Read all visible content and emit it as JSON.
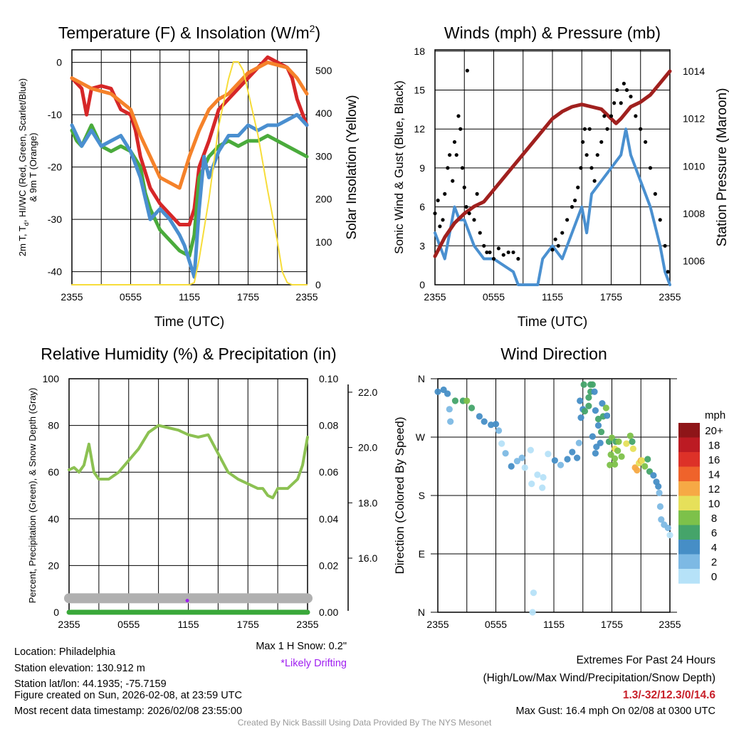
{
  "colors": {
    "red": "#d62728",
    "orange": "#f5822a",
    "green": "#4aab3c",
    "blue": "#4a8fd0",
    "yellow": "#f7dd3a",
    "maroon": "#a0201e",
    "wind": "#4a90d0",
    "gust": "#000000",
    "rh": "#8cc152",
    "snow": "#b0b0b0",
    "precip": "#3aa83a",
    "drift": "#a020f0",
    "extremes": "#c8202a"
  },
  "chart_data": [
    {
      "type": "line",
      "title_main": "Temperature (F) & Insolation (W/m",
      "title_sup": "2",
      "title_end": ")",
      "xlabel": "Time (UTC)",
      "ylabel_line1_a": "2m T, T",
      "ylabel_line1_sub": "d",
      "ylabel_line1_b": ", HI/WC (Red, Green, Scarlet/Blue)",
      "ylabel_line2": "& 9m T (Orange)",
      "y2label": "Solar Insolation (Yellow)",
      "xticks": [
        "2355",
        "0555",
        "1155",
        "1755",
        "2355"
      ],
      "ylim": [
        -42.5,
        2.4
      ],
      "yticks": [
        0,
        -10,
        -20,
        -30,
        -40
      ],
      "y2lim": [
        0,
        548
      ],
      "y2ticks": [
        0,
        100,
        200,
        300,
        400,
        500
      ],
      "series": [
        {
          "name": "2m T",
          "color": "red",
          "axis": "left",
          "x": [
            0,
            0.5,
            1,
            1.5,
            2,
            3,
            4,
            5,
            6,
            6.5,
            7,
            8,
            9,
            10,
            11,
            12,
            12.5,
            13,
            14,
            15,
            16,
            17,
            18,
            19,
            20,
            21,
            22,
            22.5,
            23,
            24
          ],
          "y": [
            -3,
            -4,
            -5,
            -10,
            -5,
            -4.5,
            -5,
            -9,
            -10,
            -13,
            -18,
            -24,
            -27,
            -29,
            -31,
            -31,
            -28,
            -20,
            -15,
            -9,
            -7,
            -5,
            -3,
            -1,
            1,
            0,
            -1,
            -3,
            -7,
            -12
          ]
        },
        {
          "name": "9m T",
          "color": "orange",
          "axis": "left",
          "x": [
            0,
            2,
            4,
            6,
            7,
            8,
            9,
            10,
            11,
            11.5,
            12,
            13,
            14,
            15,
            16,
            17,
            18,
            19,
            20,
            21,
            22,
            23,
            24
          ],
          "y": [
            -3,
            -5,
            -6,
            -9,
            -14,
            -18,
            -22,
            -23,
            -24,
            -21,
            -18,
            -13,
            -9,
            -7,
            -6,
            -4,
            -2,
            -1,
            0,
            -0.5,
            -1,
            -3,
            -6
          ]
        },
        {
          "name": "Td",
          "color": "green",
          "axis": "left",
          "x": [
            0,
            0.5,
            1,
            2,
            3,
            4,
            5,
            6,
            7,
            7.5,
            8,
            9,
            10,
            11,
            12,
            12.5,
            13,
            13.5,
            14,
            15,
            16,
            17,
            18,
            19,
            20,
            21,
            22,
            23,
            24
          ],
          "y": [
            -13,
            -15,
            -16,
            -12,
            -16,
            -17,
            -16,
            -17,
            -20,
            -25,
            -28,
            -32,
            -34,
            -36,
            -37,
            -33,
            -22,
            -20,
            -18,
            -16,
            -15,
            -16,
            -15,
            -15,
            -14,
            -15,
            -16,
            -17,
            -18
          ]
        },
        {
          "name": "HI/WC",
          "color": "blue",
          "axis": "left",
          "x": [
            0,
            1,
            2,
            3,
            4,
            5,
            6,
            7,
            8,
            9,
            10,
            11,
            11.5,
            12,
            12.5,
            13,
            13.5,
            14,
            15,
            16,
            17,
            18,
            19,
            20,
            21,
            22,
            23,
            24
          ],
          "y": [
            -12,
            -16,
            -13,
            -16,
            -15,
            -14,
            -17,
            -22,
            -30,
            -28,
            -30,
            -33,
            -35,
            -38,
            -41,
            -28,
            -18,
            -22,
            -17,
            -14,
            -14,
            -12,
            -13,
            -12,
            -12,
            -11,
            -10,
            -12
          ]
        },
        {
          "name": "Solar",
          "color": "yellow",
          "axis": "right",
          "x": [
            0,
            12,
            12.5,
            13,
            14,
            15,
            16,
            16.5,
            17,
            17.5,
            18,
            19,
            20,
            21,
            21.5,
            22,
            22.5,
            24
          ],
          "y": [
            0,
            0,
            5,
            60,
            200,
            370,
            480,
            520,
            520,
            500,
            450,
            350,
            220,
            100,
            30,
            5,
            0,
            0
          ]
        }
      ]
    },
    {
      "type": "line",
      "title": "Winds (mph) & Pressure (mb)",
      "xlabel": "Time (UTC)",
      "ylabel": "Sonic Wind & Gust (Blue, Black)",
      "y2label": "Station Pressure (Maroon)",
      "xticks": [
        "2355",
        "0555",
        "1155",
        "1755",
        "2355"
      ],
      "ylim": [
        0,
        18.1
      ],
      "yticks": [
        0,
        3,
        6,
        9,
        12,
        15,
        18
      ],
      "y2lim": [
        1005,
        1014.9
      ],
      "y2ticks": [
        1006,
        1008,
        1010,
        1012,
        1014
      ],
      "wind": {
        "x": [
          0,
          0.5,
          1,
          1.5,
          2,
          2.5,
          3,
          4,
          5,
          6,
          7,
          8,
          8.5,
          10,
          10.5,
          11,
          12,
          13,
          14,
          15,
          15.5,
          16,
          17,
          18,
          19,
          19.5,
          20,
          21,
          22,
          23,
          23.5,
          24
        ],
        "y": [
          4,
          3,
          2,
          4,
          6,
          5,
          5,
          3,
          2,
          2,
          1.5,
          1,
          0,
          0,
          0,
          2,
          3,
          2,
          4,
          6,
          4,
          7,
          8,
          9,
          10,
          12,
          10,
          8,
          6,
          3,
          1,
          0
        ]
      },
      "pressure": {
        "x": [
          0,
          1,
          2,
          3,
          4,
          5,
          6,
          7,
          8,
          9,
          10,
          11,
          12,
          13,
          14,
          15,
          16,
          17,
          18,
          18.5,
          19,
          20,
          21,
          22,
          23,
          24
        ],
        "y": [
          1006.2,
          1007,
          1007.6,
          1008,
          1008.3,
          1008.5,
          1009,
          1009.5,
          1010,
          1010.5,
          1011,
          1011.5,
          1012,
          1012.3,
          1012.5,
          1012.6,
          1012.5,
          1012.4,
          1012,
          1011.8,
          1012,
          1012.5,
          1012.7,
          1013,
          1013.5,
          1014
        ]
      },
      "gust": {
        "x": [
          0,
          0.3,
          0.5,
          0.8,
          1,
          1.3,
          1.5,
          1.8,
          2,
          2.2,
          2.4,
          2.6,
          2.8,
          3,
          3.2,
          3.3,
          3.5,
          4,
          4.3,
          4.6,
          5,
          5.3,
          5.6,
          6,
          6.5,
          7,
          7.5,
          8,
          8.5,
          12,
          12.3,
          12.6,
          13,
          13.5,
          14,
          14.3,
          14.6,
          14.9,
          15.1,
          15.3,
          15.5,
          15.8,
          16,
          16.3,
          16.6,
          17,
          17.3,
          17.6,
          18,
          18.3,
          18.6,
          19,
          19.3,
          19.6,
          20,
          20.5,
          21,
          21.5,
          22,
          22.5,
          23,
          23.5,
          23.8
        ],
        "y": [
          5.5,
          6.5,
          4.5,
          5,
          7,
          9,
          10,
          8,
          11,
          10,
          13,
          12,
          9,
          7.5,
          6,
          16.5,
          5.5,
          5,
          7,
          4,
          3,
          2.5,
          2.5,
          2,
          2.8,
          2.3,
          2.5,
          2.5,
          2,
          2.7,
          3.5,
          3,
          4,
          5,
          6,
          6.5,
          7.5,
          9,
          11,
          12,
          10,
          12,
          9,
          8,
          10,
          11,
          13,
          12,
          13,
          14,
          15,
          14,
          15.5,
          15,
          14.5,
          13,
          12,
          11,
          9,
          7,
          5,
          3,
          1
        ]
      }
    },
    {
      "type": "line",
      "title": "Relative Humidity (%) & Precipitation (in)",
      "ylabel": "Percent, Precipitation (Green), & Snow Depth (Gray)",
      "xticks": [
        "2355",
        "0555",
        "1155",
        "1755",
        "2355"
      ],
      "ylim": [
        0,
        100
      ],
      "yticks": [
        0,
        20,
        40,
        60,
        80,
        100
      ],
      "y2ticks": [
        "0.00",
        "0.02",
        "0.04",
        "0.06",
        "0.08",
        "0.10"
      ],
      "y3ticks": [
        "16.0",
        "18.0",
        "20.0",
        "22.0"
      ],
      "rh": {
        "x": [
          0,
          0.5,
          1,
          1.5,
          2,
          2.5,
          3,
          4,
          5,
          6,
          7,
          8,
          9,
          10,
          11,
          12,
          13,
          14,
          15,
          16,
          17,
          18,
          19,
          19.5,
          20,
          20.5,
          21,
          22,
          23,
          23.5,
          24
        ],
        "y": [
          61,
          62,
          60,
          63,
          72,
          60,
          57,
          57,
          60,
          65,
          70,
          77,
          80,
          79,
          78,
          76,
          75,
          76,
          68,
          60,
          57,
          55,
          53,
          53,
          50,
          49,
          53,
          53,
          57,
          63,
          75
        ]
      },
      "snow_level": 6,
      "precip": 0,
      "drift_point": {
        "x": 11.9,
        "y": 5
      },
      "note_snow": "Max 1 H Snow: 0.2\"",
      "note_drift": "*Likely Drifting"
    },
    {
      "type": "scatter",
      "title": "Wind Direction",
      "ylabel": "Direction (Colored By Speed)",
      "xticks": [
        "2355",
        "0555",
        "1155",
        "1755",
        "2355"
      ],
      "yticks": [
        "N",
        "W",
        "S",
        "E",
        "N"
      ],
      "colorbar_title": "mph",
      "colorbar_labels": [
        "20+",
        "18",
        "16",
        "14",
        "12",
        "10",
        "8",
        "6",
        "4",
        "2",
        "0"
      ],
      "colorbar_colors": [
        "#8e1518",
        "#bc1b23",
        "#dd3128",
        "#ef632b",
        "#f6a945",
        "#e6e05a",
        "#7dc14a",
        "#45a46a",
        "#468ec6",
        "#7db9e4",
        "#b6e2f8"
      ],
      "points": [
        [
          0,
          340,
          4
        ],
        [
          0.6,
          343,
          4
        ],
        [
          1,
          337,
          4
        ],
        [
          1.2,
          313,
          2
        ],
        [
          1.3,
          294,
          2
        ],
        [
          1.8,
          326,
          6
        ],
        [
          2.6,
          326,
          6
        ],
        [
          3,
          326,
          8
        ],
        [
          3.5,
          315,
          6
        ],
        [
          4.3,
          302,
          4
        ],
        [
          4.8,
          294,
          4
        ],
        [
          5.5,
          289,
          4
        ],
        [
          6,
          290,
          4
        ],
        [
          6.3,
          280,
          2
        ],
        [
          6.6,
          260,
          0
        ],
        [
          7,
          245,
          2
        ],
        [
          7.6,
          225,
          4
        ],
        [
          8.2,
          233,
          2
        ],
        [
          8.7,
          238,
          2
        ],
        [
          9,
          223,
          0
        ],
        [
          9.6,
          250,
          0
        ],
        [
          9.7,
          198,
          0
        ],
        [
          10.3,
          212,
          0
        ],
        [
          10.9,
          208,
          0
        ],
        [
          10.8,
          192,
          0
        ],
        [
          11.4,
          244,
          0
        ],
        [
          12.1,
          234,
          4
        ],
        [
          12.7,
          227,
          2
        ],
        [
          13.4,
          236,
          4
        ],
        [
          13.9,
          247,
          4
        ],
        [
          14.4,
          238,
          4
        ],
        [
          14.6,
          261,
          2
        ],
        [
          9.9,
          30,
          0
        ],
        [
          9.8,
          0,
          0
        ],
        [
          14.7,
          326,
          4
        ],
        [
          15,
          313,
          4
        ],
        [
          14.8,
          300,
          4
        ],
        [
          15.1,
          351,
          6
        ],
        [
          15.8,
          351,
          6
        ],
        [
          16,
          351,
          6
        ],
        [
          15.8,
          340,
          6
        ],
        [
          15.6,
          331,
          6
        ],
        [
          16.2,
          340,
          4
        ],
        [
          15.6,
          318,
          6
        ],
        [
          15.2,
          310,
          6
        ],
        [
          16.3,
          311,
          4
        ],
        [
          17,
          322,
          4
        ],
        [
          17.4,
          315,
          8
        ],
        [
          16.6,
          298,
          6
        ],
        [
          17.1,
          302,
          6
        ],
        [
          17.5,
          303,
          4
        ],
        [
          16.6,
          288,
          4
        ],
        [
          16.9,
          278,
          6
        ],
        [
          16,
          271,
          4
        ],
        [
          16.4,
          255,
          4
        ],
        [
          16.3,
          245,
          4
        ],
        [
          16.8,
          261,
          4
        ],
        [
          17.7,
          263,
          6
        ],
        [
          18,
          269,
          8
        ],
        [
          18.4,
          263,
          6
        ],
        [
          18.7,
          263,
          8
        ],
        [
          18.3,
          252,
          10
        ],
        [
          18.6,
          249,
          8
        ],
        [
          17.9,
          243,
          8
        ],
        [
          18.3,
          237,
          8
        ],
        [
          19,
          240,
          8
        ],
        [
          17.8,
          227,
          8
        ],
        [
          18.3,
          228,
          8
        ],
        [
          19.5,
          260,
          10
        ],
        [
          19.9,
          272,
          8
        ],
        [
          20.1,
          263,
          6
        ],
        [
          20.2,
          252,
          10
        ],
        [
          20.4,
          223,
          12
        ],
        [
          20.6,
          219,
          12
        ],
        [
          20.8,
          230,
          10
        ],
        [
          21,
          234,
          12
        ],
        [
          21.1,
          234,
          10
        ],
        [
          21.4,
          225,
          8
        ],
        [
          21.7,
          236,
          6
        ],
        [
          21.9,
          217,
          6
        ],
        [
          22.3,
          211,
          4
        ],
        [
          22.6,
          201,
          4
        ],
        [
          22.8,
          194,
          4
        ],
        [
          22.9,
          184,
          2
        ],
        [
          23,
          163,
          2
        ],
        [
          23.1,
          143,
          2
        ],
        [
          23.4,
          135,
          2
        ],
        [
          23.8,
          130,
          2
        ],
        [
          24,
          119,
          0
        ]
      ]
    }
  ],
  "info": {
    "location": "Location: Philadelphia",
    "elevation": "Station elevation: 130.912 m",
    "latlon": "Station lat/lon: 44.1935; -75.7159",
    "created": "Figure created on Sun, 2026-02-08, at 23:59 UTC",
    "recent": "Most recent data timestamp: 2026/02/08 23:55:00"
  },
  "extremes": {
    "title": "Extremes For Past 24 Hours",
    "subtitle": "(High/Low/Max Wind/Precipitation/Snow Depth)",
    "values": "1.3/-32/12.3/0/14.6",
    "gust": "Max Gust: 16.4 mph On 02/08 at 0300 UTC"
  },
  "credit": "Created By Nick Bassill Using Data Provided By The NYS Mesonet"
}
